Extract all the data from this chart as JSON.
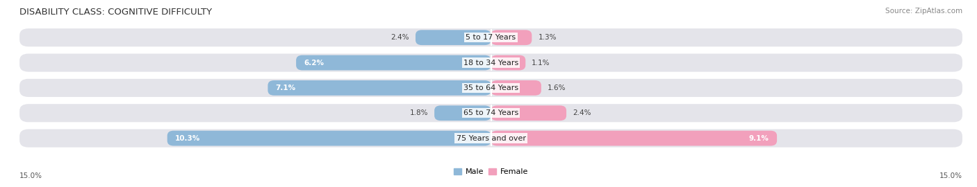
{
  "title": "DISABILITY CLASS: COGNITIVE DIFFICULTY",
  "source_text": "Source: ZipAtlas.com",
  "categories": [
    "5 to 17 Years",
    "18 to 34 Years",
    "35 to 64 Years",
    "65 to 74 Years",
    "75 Years and over"
  ],
  "male_values": [
    2.4,
    6.2,
    7.1,
    1.8,
    10.3
  ],
  "female_values": [
    1.3,
    1.1,
    1.6,
    2.4,
    9.1
  ],
  "male_color": "#8fb8d8",
  "female_color": "#f2a0bc",
  "bar_bg_color": "#e4e4ea",
  "axis_max": 15.0,
  "title_fontsize": 9.5,
  "source_fontsize": 7.5,
  "label_fontsize": 8,
  "value_fontsize": 7.5,
  "bottom_tick_label": "15.0%",
  "legend_male": "Male",
  "legend_female": "Female",
  "male_label_threshold": 4.5,
  "female_label_threshold": 4.5
}
